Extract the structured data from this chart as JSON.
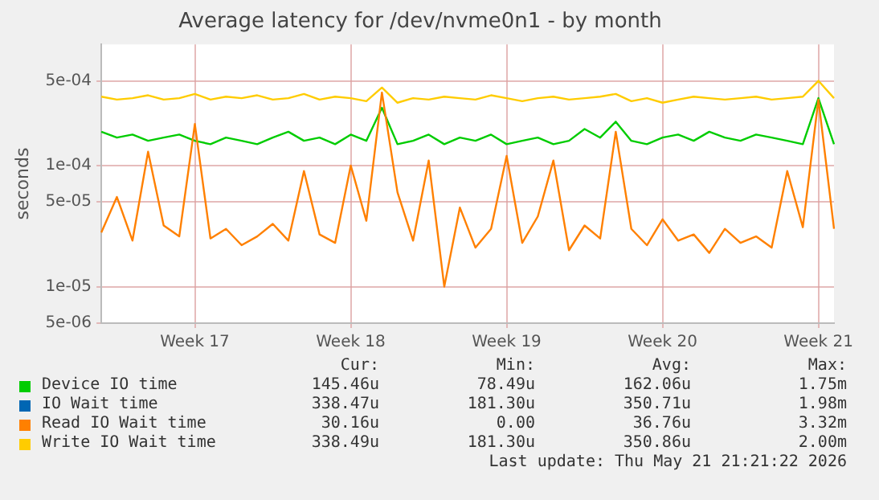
{
  "chart_data": {
    "type": "line",
    "title": "Average latency for /dev/nvme0n1 - by month",
    "ylabel": "seconds",
    "log": "y",
    "grid": true,
    "legend": "bottom",
    "marker": "none",
    "line_style": "solid",
    "categories": [
      null,
      null,
      null,
      null,
      null,
      null,
      "Week 17",
      null,
      null,
      null,
      null,
      null,
      null,
      null,
      null,
      null,
      "Week 18",
      null,
      null,
      null,
      null,
      null,
      null,
      null,
      null,
      null,
      "Week 19",
      null,
      null,
      null,
      null,
      null,
      null,
      null,
      null,
      null,
      "Week 20",
      null,
      null,
      null,
      null,
      null,
      null,
      null,
      null,
      null,
      "Week 21",
      null
    ],
    "ylim": [
      5e-06,
      0.001
    ],
    "yticks": [
      {
        "value": 5e-06,
        "label": "5e-06"
      },
      {
        "value": 1e-05,
        "label": "1e-05"
      },
      {
        "value": 5e-05,
        "label": "5e-05"
      },
      {
        "value": 0.0001,
        "label": "1e-04"
      },
      {
        "value": 0.0005,
        "label": "5e-04"
      }
    ],
    "series": [
      {
        "name": "Device IO time",
        "color": "#00cc00",
        "values": [
          0.00019,
          0.00017,
          0.00018,
          0.00016,
          0.00017,
          0.00018,
          0.00016,
          0.00015,
          0.00017,
          0.00016,
          0.00015,
          0.00017,
          0.00019,
          0.00016,
          0.00017,
          0.00015,
          0.00018,
          0.00016,
          0.0003,
          0.00015,
          0.00016,
          0.00018,
          0.00015,
          0.00017,
          0.00016,
          0.00018,
          0.00015,
          0.00016,
          0.00017,
          0.00015,
          0.00016,
          0.0002,
          0.00017,
          0.00023,
          0.00016,
          0.00015,
          0.00017,
          0.00018,
          0.00016,
          0.00019,
          0.00017,
          0.00016,
          0.00018,
          0.00017,
          0.00016,
          0.00015,
          0.00036,
          0.00015
        ]
      },
      {
        "name": "IO Wait time",
        "color": "#0066b3",
        "values": [
          null,
          null,
          null,
          null,
          null,
          null,
          null,
          null,
          null,
          null,
          null,
          null,
          null,
          null,
          null,
          null,
          null,
          null,
          null,
          null,
          null,
          null,
          null,
          null,
          null,
          null,
          null,
          null,
          null,
          null,
          null,
          null,
          null,
          null,
          null,
          null,
          null,
          null,
          null,
          null,
          null,
          null,
          null,
          null,
          null,
          null,
          null,
          null
        ]
      },
      {
        "name": "Read IO Wait time",
        "color": "#ff8000",
        "values": [
          2.8e-05,
          5.5e-05,
          2.4e-05,
          0.00013,
          3.2e-05,
          2.6e-05,
          0.00022,
          2.5e-05,
          3e-05,
          2.2e-05,
          2.6e-05,
          3.3e-05,
          2.4e-05,
          9e-05,
          2.7e-05,
          2.3e-05,
          0.0001,
          3.5e-05,
          0.0004,
          6e-05,
          2.4e-05,
          0.00011,
          1e-05,
          4.5e-05,
          2.1e-05,
          3e-05,
          0.00012,
          2.3e-05,
          3.8e-05,
          0.00011,
          2e-05,
          3.2e-05,
          2.5e-05,
          0.00019,
          3e-05,
          2.2e-05,
          3.6e-05,
          2.4e-05,
          2.7e-05,
          1.9e-05,
          3e-05,
          2.3e-05,
          2.6e-05,
          2.1e-05,
          9e-05,
          3.1e-05,
          0.00035,
          3e-05
        ]
      },
      {
        "name": "Write IO Wait time",
        "color": "#ffcc00",
        "values": [
          0.00037,
          0.00035,
          0.00036,
          0.00038,
          0.00035,
          0.00036,
          0.00039,
          0.00035,
          0.00037,
          0.00036,
          0.00038,
          0.00035,
          0.00036,
          0.00039,
          0.00035,
          0.00037,
          0.00036,
          0.00034,
          0.00044,
          0.00033,
          0.00036,
          0.00035,
          0.00037,
          0.00036,
          0.00035,
          0.00038,
          0.00036,
          0.00034,
          0.00036,
          0.00037,
          0.00035,
          0.00036,
          0.00037,
          0.00039,
          0.00034,
          0.00036,
          0.00033,
          0.00035,
          0.00037,
          0.00036,
          0.00035,
          0.00036,
          0.00037,
          0.00035,
          0.00036,
          0.00037,
          0.0005,
          0.00036
        ]
      }
    ],
    "annotations": [
      "Cur:",
      "Min:",
      "Avg:",
      "Max:",
      "145.46u",
      "78.49u",
      "162.06u",
      "1.75m",
      "338.47u",
      "181.30u",
      "350.71u",
      "1.98m",
      "30.16u",
      "0.00",
      "36.76u",
      "3.32m",
      "338.49u",
      "181.30u",
      "350.86u",
      "2.00m",
      "Last update: Thu May 21 21:21:22 2026"
    ]
  }
}
